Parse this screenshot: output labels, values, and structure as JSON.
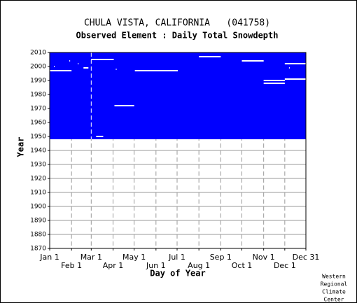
{
  "chart_data": {
    "type": "coverage",
    "title": "CHULA VISTA, CALIFORNIA   (041758)",
    "subtitle": "Observed Element : Daily Total Snowdepth",
    "x_label": "Day of Year",
    "y_label": "Year",
    "xlim": [
      1,
      365
    ],
    "ylim": [
      1870,
      2010
    ],
    "xticks": [
      {
        "value": 1,
        "label": "Jan 1"
      },
      {
        "value": 32,
        "label": "Feb 1"
      },
      {
        "value": 60,
        "label": "Mar 1"
      },
      {
        "value": 91,
        "label": "Apr 1"
      },
      {
        "value": 121,
        "label": "May 1"
      },
      {
        "value": 152,
        "label": "Jun 1"
      },
      {
        "value": 182,
        "label": "Jul 1"
      },
      {
        "value": 213,
        "label": "Aug 1"
      },
      {
        "value": 244,
        "label": "Sep 1"
      },
      {
        "value": 274,
        "label": "Oct 1"
      },
      {
        "value": 305,
        "label": "Nov 1"
      },
      {
        "value": 335,
        "label": "Dec 1"
      },
      {
        "value": 365,
        "label": "Dec 31"
      }
    ],
    "yticks": [
      1870,
      1880,
      1890,
      1900,
      1910,
      1920,
      1930,
      1940,
      1950,
      1960,
      1970,
      1980,
      1990,
      2000,
      2010
    ],
    "color": "#0000ff",
    "coverage": {
      "from": 1948,
      "to": 2010,
      "start": 1,
      "end": 365
    },
    "missing": [
      {
        "from": 1948,
        "to": 2010,
        "start": 60,
        "end": 60
      },
      {
        "from": 1997,
        "to": 1997,
        "start": 1,
        "end": 32
      },
      {
        "from": 2000,
        "to": 2000,
        "start": 7,
        "end": 8
      },
      {
        "from": 2004,
        "to": 2004,
        "start": 29,
        "end": 29
      },
      {
        "from": 2002,
        "to": 2002,
        "start": 41,
        "end": 42
      },
      {
        "from": 1999,
        "to": 1999,
        "start": 49,
        "end": 56
      },
      {
        "from": 2005,
        "to": 2005,
        "start": 60,
        "end": 92
      },
      {
        "from": 1950,
        "to": 1950,
        "start": 67,
        "end": 77
      },
      {
        "from": 1972,
        "to": 1972,
        "start": 93,
        "end": 121
      },
      {
        "from": 1998,
        "to": 1998,
        "start": 95,
        "end": 95
      },
      {
        "from": 1997,
        "to": 1997,
        "start": 122,
        "end": 183
      },
      {
        "from": 2007,
        "to": 2007,
        "start": 213,
        "end": 244
      },
      {
        "from": 2004,
        "to": 2004,
        "start": 274,
        "end": 305
      },
      {
        "from": 1990,
        "to": 1990,
        "start": 305,
        "end": 335
      },
      {
        "from": 1988,
        "to": 1988,
        "start": 305,
        "end": 335
      },
      {
        "from": 2002,
        "to": 2002,
        "start": 335,
        "end": 365
      },
      {
        "from": 1991,
        "to": 1991,
        "start": 335,
        "end": 365
      },
      {
        "from": 1999,
        "to": 1999,
        "start": 341,
        "end": 341
      }
    ],
    "footer": [
      "Western",
      "Regional",
      "Climate",
      "Center"
    ]
  }
}
